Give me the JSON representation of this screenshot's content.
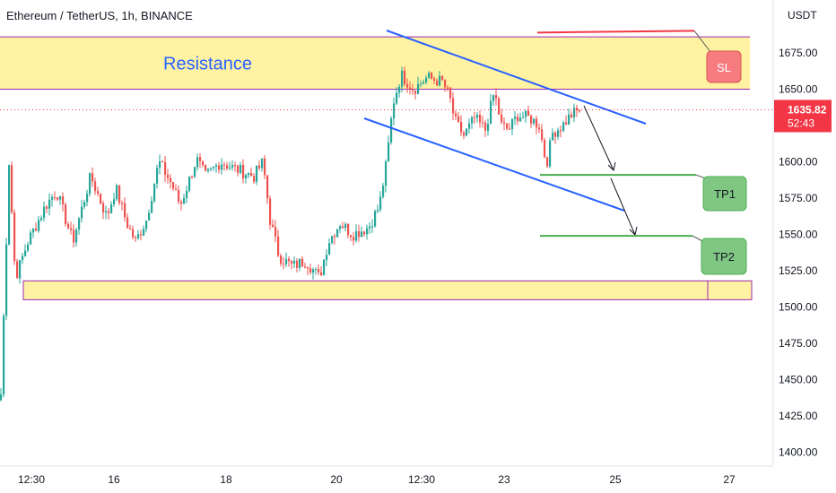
{
  "header": {
    "title": "Ethereum / TetherUS, 1h, BINANCE"
  },
  "colors": {
    "up": "#26a69a",
    "down": "#ef5350",
    "zone_fill": "#fff3a3",
    "zone_border": "#9c27b0",
    "channel": "#2962ff",
    "sl_line": "#f23645",
    "tp_line": "#4caf50",
    "sl_badge": "#f77c80",
    "tp_badge": "#81c784",
    "price_tag": "#f23645",
    "label_blue": "#2962ff"
  },
  "chart_data": {
    "type": "candlestick",
    "currency": "USDT",
    "y_ticks": [
      1400,
      1425,
      1450,
      1475,
      1500,
      1525,
      1550,
      1575,
      1600,
      1625,
      1650,
      1675
    ],
    "y_tick_labels": [
      "1400.00",
      "1425.00",
      "1450.00",
      "1475.00",
      "1500.00",
      "1525.00",
      "1550.00",
      "1575.00",
      "1600.00",
      "1625.00",
      "1650.00",
      "1675.00"
    ],
    "x_ticks": [
      "12:30",
      "16",
      "18",
      "20",
      "12:30",
      "23",
      "25",
      "27"
    ],
    "last_price": "1635.82",
    "countdown": "52:43",
    "annotations": {
      "resistance_label": "Resistance",
      "resistance_zone": [
        1650,
        1686
      ],
      "support_zone": [
        1505,
        1518
      ],
      "stop_loss": {
        "label": "SL",
        "price": 1689
      },
      "take_profit_1": {
        "label": "TP1",
        "price": 1591
      },
      "take_profit_2": {
        "label": "TP2",
        "price": 1549
      }
    },
    "anchors": [
      [
        0,
        1440
      ],
      [
        9,
        1600
      ],
      [
        16,
        1520
      ],
      [
        30,
        1545
      ],
      [
        50,
        1570
      ],
      [
        62,
        1580
      ],
      [
        80,
        1545
      ],
      [
        100,
        1590
      ],
      [
        118,
        1562
      ],
      [
        128,
        1582
      ],
      [
        140,
        1558
      ],
      [
        150,
        1545
      ],
      [
        162,
        1560
      ],
      [
        176,
        1600
      ],
      [
        190,
        1585
      ],
      [
        200,
        1570
      ],
      [
        218,
        1602
      ],
      [
        228,
        1590
      ],
      [
        245,
        1600
      ],
      [
        262,
        1595
      ],
      [
        282,
        1590
      ],
      [
        292,
        1600
      ],
      [
        300,
        1560
      ],
      [
        310,
        1535
      ],
      [
        325,
        1528
      ],
      [
        340,
        1532
      ],
      [
        355,
        1520
      ],
      [
        365,
        1545
      ],
      [
        378,
        1558
      ],
      [
        392,
        1550
      ],
      [
        410,
        1555
      ],
      [
        422,
        1570
      ],
      [
        430,
        1600
      ],
      [
        437,
        1640
      ],
      [
        446,
        1660
      ],
      [
        460,
        1650
      ],
      [
        475,
        1658
      ],
      [
        492,
        1655
      ],
      [
        500,
        1645
      ],
      [
        506,
        1628
      ],
      [
        516,
        1618
      ],
      [
        528,
        1630
      ],
      [
        540,
        1622
      ],
      [
        550,
        1648
      ],
      [
        558,
        1625
      ],
      [
        566,
        1622
      ],
      [
        576,
        1632
      ],
      [
        590,
        1630
      ],
      [
        600,
        1625
      ],
      [
        608,
        1598
      ],
      [
        615,
        1620
      ],
      [
        626,
        1625
      ],
      [
        635,
        1632
      ],
      [
        646,
        1636
      ]
    ]
  }
}
